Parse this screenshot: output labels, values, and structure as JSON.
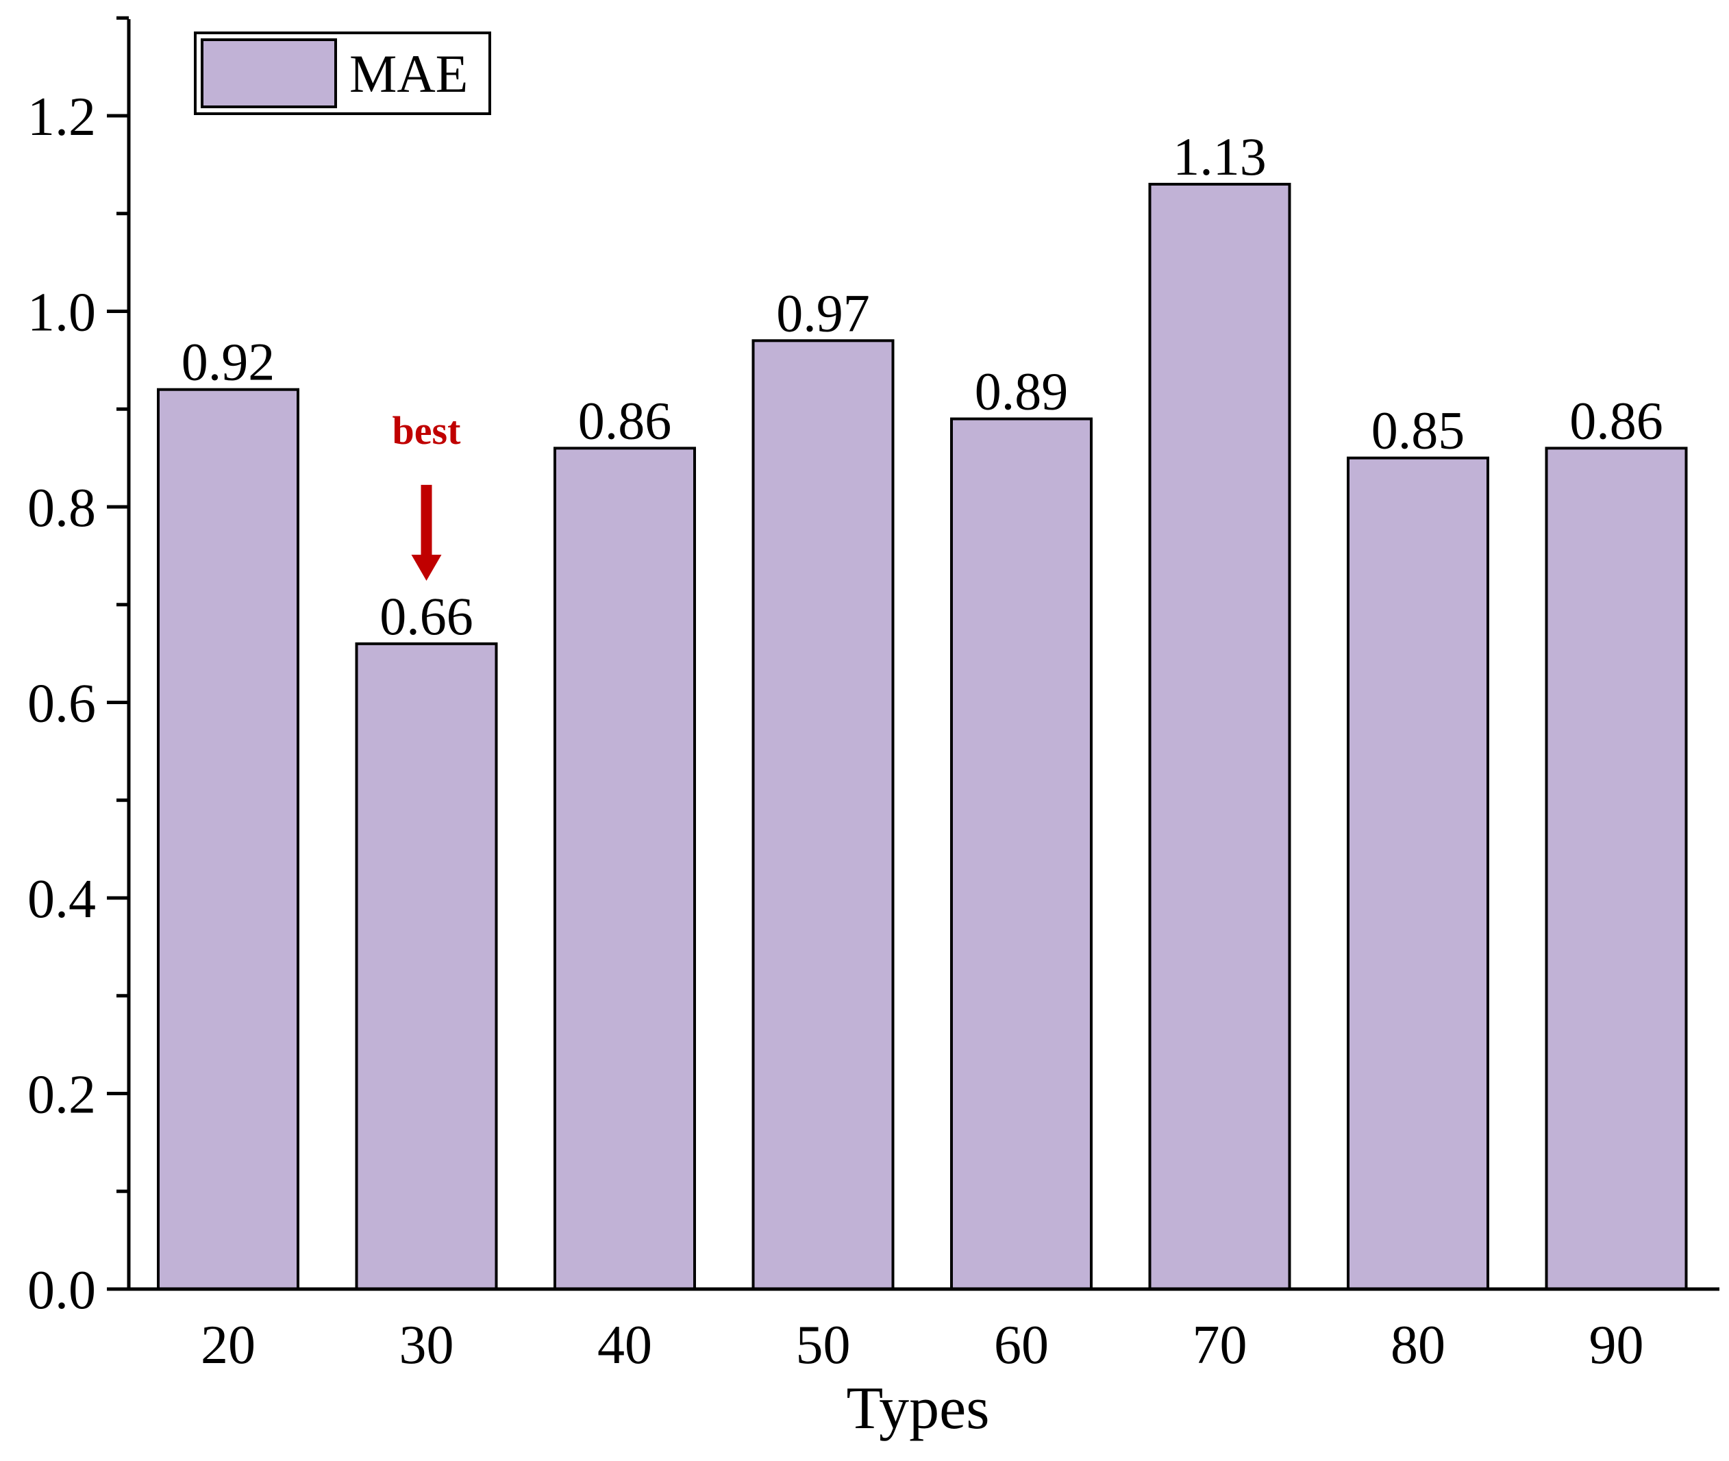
{
  "chart_data": {
    "type": "bar",
    "categories": [
      "20",
      "30",
      "40",
      "50",
      "60",
      "70",
      "80",
      "90"
    ],
    "series": [
      {
        "name": "MAE",
        "values": [
          0.92,
          0.66,
          0.86,
          0.97,
          0.89,
          1.13,
          0.85,
          0.86
        ]
      }
    ],
    "data_labels": [
      "0.92",
      "0.66",
      "0.86",
      "0.97",
      "0.89",
      "1.13",
      "0.85",
      "0.86"
    ],
    "title": "",
    "xlabel": "Types",
    "ylabel": "",
    "ylim": [
      0,
      1.3
    ],
    "yticks": [
      0.0,
      0.2,
      0.4,
      0.6,
      0.8,
      1.0,
      1.2
    ],
    "ytick_labels": [
      "0.0",
      "0.2",
      "0.4",
      "0.6",
      "0.8",
      "1.0",
      "1.2"
    ],
    "grid": false,
    "legend": {
      "position": "top-left",
      "entries": [
        "MAE"
      ]
    },
    "annotation": {
      "text": "best",
      "category": "30",
      "color": "#c00000"
    },
    "colors": {
      "bar_fill": "#c1b2d6",
      "bar_stroke": "#000000",
      "annotation": "#c00000"
    }
  }
}
